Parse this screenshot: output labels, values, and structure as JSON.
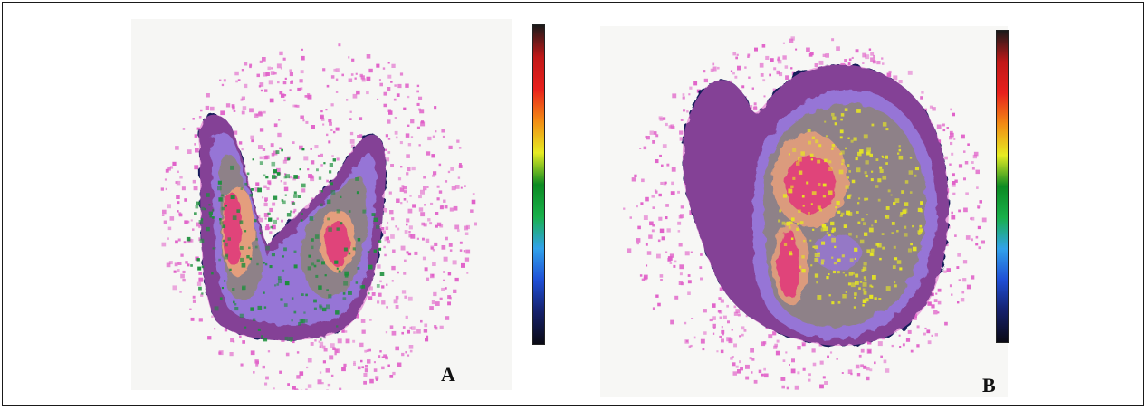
{
  "panels": [
    {
      "label": "A",
      "region": "thyroid-butterfly"
    },
    {
      "label": "B",
      "region": "thyroid-nodule"
    }
  ],
  "colorbar": {
    "stops": [
      "#0a0a14",
      "#15206a",
      "#1f4fd6",
      "#31a2ea",
      "#18b04a",
      "#0c8a22",
      "#e6ec22",
      "#f28c14",
      "#e8201c",
      "#c01818",
      "#1a1a1a"
    ]
  },
  "colors": {
    "background": "#ffffff",
    "border": "#1a1a1a",
    "speckle": "#e060c8",
    "dark": "#141a5a",
    "blue": "#3e8ee6",
    "green": "#2aa83a",
    "yellow": "#e8e820",
    "red": "#e0221c"
  }
}
